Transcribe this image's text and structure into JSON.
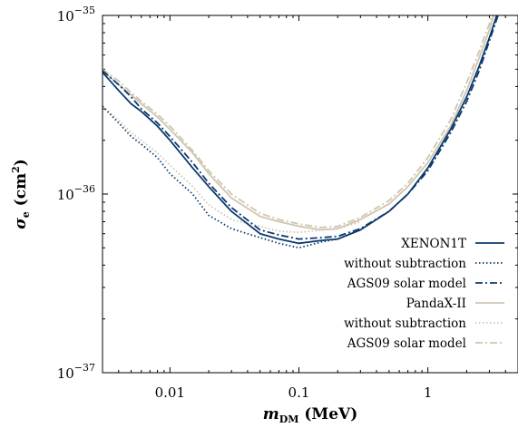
{
  "chart_data": {
    "type": "line",
    "xlabel": "m_DM (MeV)",
    "xlabel_main": "m",
    "xlabel_sub": "DM",
    "xlabel_unit": " (MeV)",
    "ylabel": "σ_e (cm²)",
    "ylabel_main": "σ",
    "ylabel_sub": "e",
    "ylabel_unit": " (cm",
    "ylabel_sup": "2",
    "ylabel_close": ")",
    "xscale": "log",
    "yscale": "log",
    "xlim": [
      0.003,
      5
    ],
    "ylim": [
      1e-37,
      1e-35
    ],
    "x_ticks": [
      {
        "value": 0.01,
        "label": "0.01"
      },
      {
        "value": 0.1,
        "label": "0.1"
      },
      {
        "value": 1,
        "label": "1"
      }
    ],
    "y_ticks": [
      {
        "value": 1e-37,
        "base": "10",
        "exp": "−37"
      },
      {
        "value": 1e-36,
        "base": "10",
        "exp": "−36"
      },
      {
        "value": 1e-35,
        "base": "10",
        "exp": "−35"
      }
    ],
    "legend_position": "lower-right",
    "series": [
      {
        "name": "XENON1T",
        "color": "#0b3a6e",
        "dash": "solid",
        "x": [
          0.003,
          0.004,
          0.005,
          0.006,
          0.008,
          0.01,
          0.015,
          0.02,
          0.03,
          0.05,
          0.07,
          0.1,
          0.15,
          0.2,
          0.3,
          0.5,
          0.7,
          1.0,
          1.5,
          2.0,
          2.5,
          3.0,
          3.5
        ],
        "y": [
          4.8e-36,
          3.8e-36,
          3.2e-36,
          2.9e-36,
          2.4e-36,
          2e-36,
          1.4e-36,
          1.1e-36,
          8e-37,
          6e-37,
          5.6e-37,
          5.3e-37,
          5.5e-37,
          5.6e-37,
          6.3e-37,
          8e-37,
          1e-36,
          1.4e-36,
          2.3e-36,
          3.5e-36,
          5.2e-36,
          7.5e-36,
          1.05e-35
        ]
      },
      {
        "name": "without subtraction",
        "color": "#0b3a6e",
        "dash": "dotted",
        "x": [
          0.003,
          0.004,
          0.005,
          0.006,
          0.008,
          0.01,
          0.015,
          0.02,
          0.03,
          0.05,
          0.07,
          0.1,
          0.15,
          0.2,
          0.3
        ],
        "y": [
          3.1e-36,
          2.5e-36,
          2.1e-36,
          1.9e-36,
          1.6e-36,
          1.3e-36,
          1e-36,
          7.6e-37,
          6.4e-37,
          5.7e-37,
          5.3e-37,
          5e-37,
          5.4e-37,
          5.6e-37,
          6.3e-37
        ]
      },
      {
        "name": "AGS09 solar model",
        "color": "#0b3a6e",
        "dash": "dashdot",
        "x": [
          0.003,
          0.004,
          0.005,
          0.006,
          0.008,
          0.01,
          0.015,
          0.02,
          0.03,
          0.05,
          0.07,
          0.1,
          0.15,
          0.2,
          0.3,
          0.5,
          0.7,
          1.0,
          1.5,
          2.0,
          2.5,
          3.0,
          3.5
        ],
        "y": [
          4.9e-36,
          4.1e-36,
          3.5e-36,
          3e-36,
          2.5e-36,
          2.1e-36,
          1.5e-36,
          1.15e-36,
          8.4e-37,
          6.3e-37,
          5.9e-37,
          5.6e-37,
          5.7e-37,
          5.8e-37,
          6.4e-37,
          8e-37,
          1e-36,
          1.35e-36,
          2.2e-36,
          3.3e-36,
          4.9e-36,
          7.2e-36,
          1e-35
        ]
      },
      {
        "name": "PandaX-II",
        "color": "#cfc5b0",
        "dash": "solid",
        "x": [
          0.003,
          0.004,
          0.005,
          0.006,
          0.008,
          0.01,
          0.015,
          0.02,
          0.03,
          0.05,
          0.07,
          0.1,
          0.15,
          0.2,
          0.3,
          0.5,
          0.7,
          1.0,
          1.5,
          2.0,
          2.5,
          3.0,
          3.3
        ],
        "y": [
          4.9e-36,
          4.1e-36,
          3.6e-36,
          3.2e-36,
          2.7e-36,
          2.3e-36,
          1.7e-36,
          1.3e-36,
          9.5e-37,
          7.5e-37,
          7e-37,
          6.6e-37,
          6.3e-37,
          6.4e-37,
          7.2e-37,
          8.8e-37,
          1.1e-36,
          1.5e-36,
          2.4e-36,
          3.8e-36,
          5.8e-36,
          8.3e-36,
          1.05e-35
        ]
      },
      {
        "name": "without subtraction",
        "color": "#cfc5b0",
        "dash": "dotted",
        "x": [
          0.003,
          0.004,
          0.005,
          0.006,
          0.008,
          0.01,
          0.015,
          0.02,
          0.03,
          0.05,
          0.07,
          0.1,
          0.15,
          0.2,
          0.3
        ],
        "y": [
          3.1e-36,
          2.6e-36,
          2.2e-36,
          2e-36,
          1.7e-36,
          1.45e-36,
          1.1e-36,
          8.7e-37,
          7.2e-37,
          6.6e-37,
          6.2e-37,
          6.1e-37,
          6.3e-37,
          6.4e-37,
          7e-37
        ]
      },
      {
        "name": "AGS09 solar model",
        "color": "#cfc5b0",
        "dash": "dashdot",
        "x": [
          0.003,
          0.004,
          0.005,
          0.006,
          0.008,
          0.01,
          0.015,
          0.02,
          0.03,
          0.05,
          0.07,
          0.1,
          0.15,
          0.2,
          0.3,
          0.5,
          0.7,
          1.0,
          1.5,
          2.0,
          2.5,
          3.0,
          3.3
        ],
        "y": [
          5e-36,
          4.3e-36,
          3.7e-36,
          3.3e-36,
          2.8e-36,
          2.4e-36,
          1.75e-36,
          1.35e-36,
          1e-36,
          7.8e-37,
          7.2e-37,
          6.8e-37,
          6.5e-37,
          6.6e-37,
          7.4e-37,
          9.2e-37,
          1.15e-36,
          1.6e-36,
          2.6e-36,
          4.2e-36,
          6.3e-36,
          9e-36,
          1.1e-35
        ]
      }
    ]
  }
}
